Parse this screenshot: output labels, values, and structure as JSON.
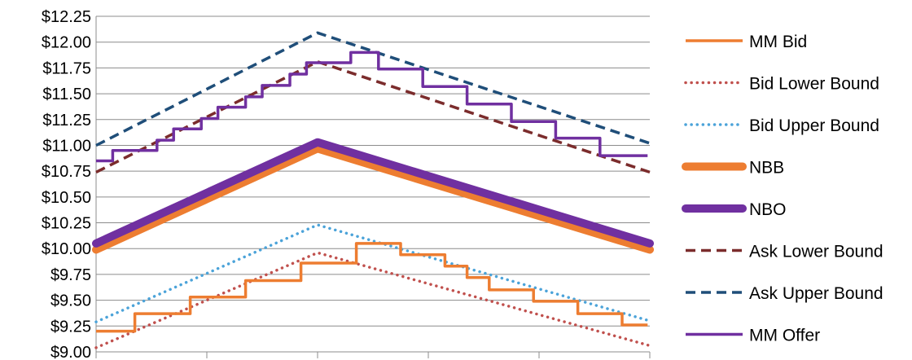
{
  "chart_data": {
    "type": "line",
    "ylim": [
      9.0,
      12.25
    ],
    "y_ticks": [
      9.0,
      9.25,
      9.5,
      9.75,
      10.0,
      10.25,
      10.5,
      10.75,
      11.0,
      11.25,
      11.5,
      11.75,
      12.0,
      12.25
    ],
    "y_tick_labels": [
      "$9.00",
      "$9.25",
      "$9.50",
      "$9.75",
      "$10.00",
      "$10.25",
      "$10.50",
      "$10.75",
      "$11.00",
      "$11.25",
      "$11.50",
      "$11.75",
      "$12.00",
      "$12.25"
    ],
    "x_tick_count": 6,
    "xlim": [
      0,
      5
    ],
    "grid": "horizontal",
    "legend_position": "right",
    "series": [
      {
        "name": "MM Bid",
        "color": "#ed7d31",
        "style": "solid",
        "x": [
          0,
          0.35,
          0.35,
          0.5,
          0.5,
          0.85,
          0.85,
          1.0,
          1.0,
          1.35,
          1.35,
          1.5,
          1.5,
          1.85,
          1.85,
          2.0,
          2.0,
          2.35,
          2.35,
          2.4,
          2.4,
          2.75,
          2.75,
          2.9,
          2.9,
          3.15,
          3.15,
          3.35,
          3.35,
          3.55,
          3.55,
          3.75,
          3.75,
          3.95,
          3.95,
          4.15,
          4.15,
          4.35,
          4.35,
          4.55,
          4.55,
          4.75,
          4.75,
          4.98
        ],
        "y": [
          9.2,
          9.2,
          9.37,
          9.37,
          9.37,
          9.37,
          9.53,
          9.53,
          9.53,
          9.53,
          9.69,
          9.69,
          9.69,
          9.69,
          9.86,
          9.86,
          9.86,
          9.86,
          10.05,
          10.05,
          10.05,
          10.05,
          9.94,
          9.94,
          9.94,
          9.94,
          9.83,
          9.83,
          9.72,
          9.72,
          9.6,
          9.6,
          9.6,
          9.6,
          9.49,
          9.49,
          9.49,
          9.49,
          9.37,
          9.37,
          9.37,
          9.37,
          9.26,
          9.26
        ]
      },
      {
        "name": "Bid Lower Bound",
        "color": "#c0504d",
        "style": "dotted",
        "x": [
          0,
          2.0,
          5.0
        ],
        "y": [
          9.04,
          9.96,
          9.06
        ]
      },
      {
        "name": "Bid Upper Bound",
        "color": "#4ba3d9",
        "style": "dotted",
        "x": [
          0,
          2.0,
          5.0
        ],
        "y": [
          9.29,
          10.23,
          9.3
        ]
      },
      {
        "name": "NBB",
        "color": "#ed7d31",
        "style": "thick",
        "x": [
          0,
          2.0,
          5.0
        ],
        "y": [
          9.99,
          10.97,
          9.99
        ]
      },
      {
        "name": "NBO",
        "color": "#7030a0",
        "style": "thick",
        "x": [
          0,
          2.0,
          5.0
        ],
        "y": [
          10.05,
          11.03,
          10.05
        ]
      },
      {
        "name": "Ask Lower Bound",
        "color": "#7b2c2c",
        "style": "dashed",
        "x": [
          0,
          2.0,
          5.0
        ],
        "y": [
          10.74,
          11.81,
          10.74
        ]
      },
      {
        "name": "Ask Upper Bound",
        "color": "#1f4e79",
        "style": "dashed",
        "x": [
          0,
          2.0,
          5.0
        ],
        "y": [
          11.0,
          12.09,
          11.02
        ]
      },
      {
        "name": "MM Offer",
        "color": "#7030a0",
        "style": "solid",
        "x": [
          0,
          0.15,
          0.15,
          0.3,
          0.3,
          0.55,
          0.55,
          0.7,
          0.7,
          0.95,
          0.95,
          1.1,
          1.1,
          1.35,
          1.35,
          1.5,
          1.5,
          1.75,
          1.75,
          1.9,
          1.9,
          2.3,
          2.3,
          2.55,
          2.55,
          2.7,
          2.7,
          2.95,
          2.95,
          3.15,
          3.15,
          3.35,
          3.35,
          3.55,
          3.55,
          3.75,
          3.75,
          3.95,
          3.95,
          4.15,
          4.15,
          4.35,
          4.35,
          4.55,
          4.55,
          4.75,
          4.75,
          4.98
        ],
        "y": [
          10.85,
          10.85,
          10.95,
          10.95,
          10.95,
          10.95,
          11.05,
          11.05,
          11.16,
          11.16,
          11.26,
          11.26,
          11.37,
          11.37,
          11.47,
          11.47,
          11.58,
          11.58,
          11.69,
          11.69,
          11.8,
          11.8,
          11.9,
          11.9,
          11.74,
          11.74,
          11.74,
          11.74,
          11.57,
          11.57,
          11.57,
          11.57,
          11.4,
          11.4,
          11.4,
          11.4,
          11.23,
          11.23,
          11.23,
          11.23,
          11.07,
          11.07,
          11.07,
          11.07,
          10.9,
          10.9,
          10.9,
          10.9
        ]
      }
    ]
  }
}
